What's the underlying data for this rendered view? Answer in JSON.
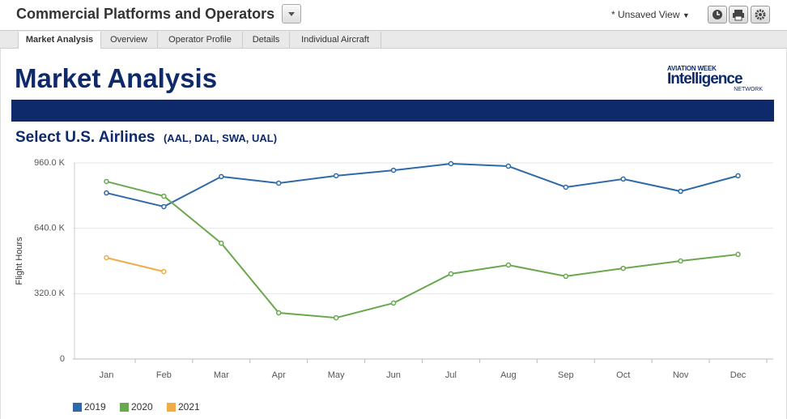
{
  "header": {
    "title": "Commercial Platforms and Operators",
    "view": "* Unsaved View"
  },
  "tabs": [
    "Market Analysis",
    "Overview",
    "Operator Profile",
    "Details",
    "Individual Aircraft"
  ],
  "page_title": "Market Analysis",
  "logo": {
    "top": "AVIATION WEEK",
    "main": "Intelligence",
    "bottom": "NETWORK"
  },
  "chart_data": {
    "type": "line",
    "title": "Select U.S. Airlines",
    "subtitle": "(AAL, DAL, SWA, UAL)",
    "ylabel": "Flight Hours",
    "categories": [
      "Jan",
      "Feb",
      "Mar",
      "Apr",
      "May",
      "Jun",
      "Jul",
      "Aug",
      "Sep",
      "Oct",
      "Nov",
      "Dec"
    ],
    "series": [
      {
        "name": "2019",
        "color": "#2e6aa8",
        "values": [
          813000,
          746000,
          893000,
          861000,
          897000,
          924000,
          956000,
          944000,
          841000,
          881000,
          821000,
          897000
        ]
      },
      {
        "name": "2020",
        "color": "#6aa84f",
        "values": [
          869000,
          797000,
          567000,
          226000,
          202000,
          274000,
          417000,
          460000,
          405000,
          444000,
          480000,
          512000
        ]
      },
      {
        "name": "2021",
        "color": "#f0ac45",
        "values": [
          496000,
          428000,
          null,
          null,
          null,
          null,
          null,
          null,
          null,
          null,
          null,
          null
        ]
      }
    ],
    "ylim": [
      0,
      960000
    ],
    "yticks": [
      0,
      {
        "value": 320000,
        "label": "320.0 K"
      },
      {
        "value": 640000,
        "label": "640.0 K"
      },
      {
        "value": 960000,
        "label": "960.0 K"
      }
    ],
    "grid": true,
    "legend": "bottom-left"
  }
}
